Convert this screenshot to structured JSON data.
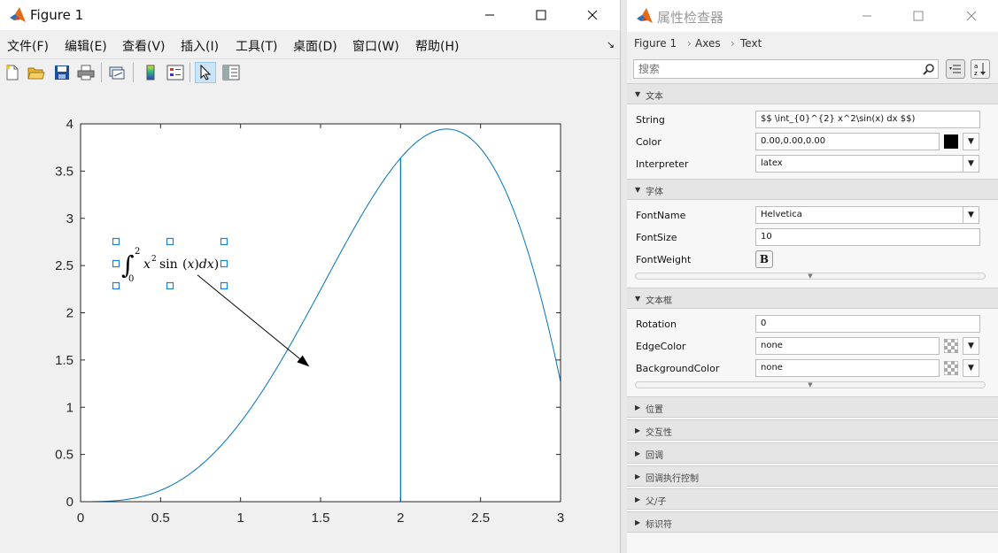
{
  "figure": {
    "title": "Figure 1",
    "menus": [
      "文件(F)",
      "编辑(E)",
      "查看(V)",
      "插入(I)",
      "工具(T)",
      "桌面(D)",
      "窗口(W)",
      "帮助(H)"
    ],
    "toolbar_icons": [
      "new-figure-icon",
      "open-file-icon",
      "save-icon",
      "print-icon",
      "link-plot-icon",
      "colorbar-icon",
      "legend-icon",
      "edit-plot-icon",
      "property-inspector-icon"
    ]
  },
  "chart_data": {
    "type": "line",
    "title": "",
    "xlabel": "",
    "ylabel": "",
    "xlim": [
      0,
      3
    ],
    "ylim": [
      0,
      4
    ],
    "xticks": [
      "0",
      "0.5",
      "1",
      "1.5",
      "2",
      "2.5",
      "3"
    ],
    "yticks": [
      "0",
      "0.5",
      "1",
      "1.5",
      "2",
      "2.5",
      "3",
      "3.5",
      "4"
    ],
    "grid": false,
    "series": [
      {
        "function": "x^2*sin(x)",
        "x": [
          0,
          0.25,
          0.5,
          0.75,
          1,
          1.25,
          1.5,
          1.75,
          2,
          2.25,
          2.29,
          2.5,
          2.75,
          3
        ],
        "y": [
          0,
          0.015,
          0.12,
          0.383,
          0.841,
          1.483,
          2.244,
          3.01,
          3.637,
          3.939,
          3.94,
          3.74,
          2.896,
          1.27
        ],
        "color": "#0072bd"
      }
    ],
    "vline": {
      "x": 2,
      "y": [
        0,
        3.637
      ],
      "color": "#0072bd"
    },
    "annotation_text": {
      "latex": "\\int_0^2 x^2 \\sin(x) dx",
      "x": 0.25,
      "y": 2.5,
      "selected": true
    },
    "arrow": {
      "from": [
        0.73,
        2.4
      ],
      "to": [
        1.43,
        1.43
      ],
      "color": "#000000"
    }
  },
  "inspector": {
    "title": "属性检查器",
    "breadcrumb": [
      "Figure 1",
      "Axes",
      "Text"
    ],
    "search_placeholder": "搜索",
    "sections": {
      "text": "文本",
      "font": "字体",
      "textbox": "文本框",
      "position": "位置",
      "interactivity": "交互性",
      "callback": "回调",
      "callback_exec": "回调执行控制",
      "parent_child": "父/子",
      "identifier": "标识符"
    },
    "props": {
      "string": {
        "label": "String",
        "value": "$$ \\int_{0}^{2} x^2\\sin(x) dx $$)"
      },
      "color": {
        "label": "Color",
        "value": "0.00,0.00,0.00",
        "swatch": "#000000"
      },
      "interpreter": {
        "label": "Interpreter",
        "value": "latex"
      },
      "fontname": {
        "label": "FontName",
        "value": "Helvetica"
      },
      "fontsize": {
        "label": "FontSize",
        "value": "10"
      },
      "fontweight": {
        "label": "FontWeight",
        "value": "B"
      },
      "rotation": {
        "label": "Rotation",
        "value": "0"
      },
      "edgecolor": {
        "label": "EdgeColor",
        "value": "none"
      },
      "backgroundcolor": {
        "label": "BackgroundColor",
        "value": "none"
      }
    }
  }
}
